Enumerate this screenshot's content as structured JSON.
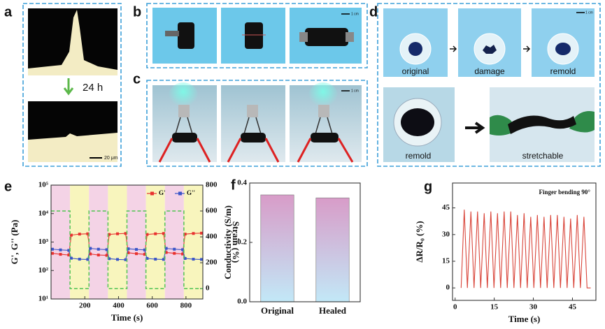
{
  "panel_labels": [
    "a",
    "b",
    "c",
    "d",
    "e",
    "f",
    "g"
  ],
  "photos": {
    "a_time": "24 h",
    "a_scale": "20 μm",
    "b_scale": "1 cm",
    "c_scale": "1 cm",
    "d_scale": "1 cm",
    "d_captions": [
      "original",
      "damage",
      "remold",
      "remold",
      "stretchable"
    ]
  },
  "chart_data": [
    {
      "type": "line",
      "xlabel": "Time (s)",
      "ylabel": "G', G'' (Pa)",
      "y2label": "Strain (%)",
      "log_y": true,
      "xlim": [
        0,
        900
      ],
      "xticks": [
        200,
        400,
        600,
        800
      ],
      "ylim": [
        10,
        100000
      ],
      "yticks": [
        {
          "value": 10,
          "label": "10¹"
        },
        {
          "value": 100,
          "label": "10²"
        },
        {
          "value": 1000,
          "label": "10³"
        },
        {
          "value": 10000,
          "label": "10⁴"
        },
        {
          "value": 100000,
          "label": "10⁵"
        }
      ],
      "y2lim": [
        -80,
        800
      ],
      "y2ticks": [
        0,
        200,
        400,
        600,
        800
      ],
      "legend": "upper right",
      "band_colors": [
        "#f4d3e6",
        "#f8f5bd"
      ],
      "series": [
        {
          "name": "G'",
          "color": "#e8312f",
          "x": [
            8,
            56,
            105,
            120,
            169,
            217,
            233,
            281,
            330,
            345,
            394,
            442,
            458,
            506,
            555,
            570,
            619,
            667,
            683,
            731,
            780,
            795,
            844,
            892
          ],
          "values": [
            400,
            370,
            350,
            1750,
            1900,
            1950,
            380,
            350,
            340,
            1850,
            1950,
            2000,
            420,
            390,
            370,
            1850,
            1950,
            2000,
            430,
            400,
            380,
            1900,
            2000,
            2050
          ]
        },
        {
          "name": "G''",
          "color": "#3a55c8",
          "x": [
            8,
            56,
            105,
            120,
            169,
            217,
            233,
            281,
            330,
            345,
            394,
            442,
            458,
            506,
            555,
            570,
            619,
            667,
            683,
            731,
            780,
            795,
            844,
            892
          ],
          "values": [
            560,
            530,
            510,
            270,
            250,
            245,
            600,
            560,
            540,
            260,
            245,
            240,
            580,
            550,
            530,
            265,
            250,
            245,
            600,
            560,
            540,
            265,
            250,
            245
          ]
        },
        {
          "axis": "y2",
          "color": "#5cc65c",
          "dash": true,
          "x": [
            0,
            112.5,
            112.5,
            225,
            225,
            337.5,
            337.5,
            450,
            450,
            562.5,
            562.5,
            675,
            675,
            787.5,
            787.5,
            900
          ],
          "values": [
            600,
            600,
            0,
            0,
            600,
            600,
            0,
            0,
            600,
            600,
            0,
            0,
            600,
            600,
            0,
            0
          ]
        }
      ]
    },
    {
      "type": "bar",
      "ylabel": "Conductivity (S/m)",
      "categories": [
        "Original",
        "Healed"
      ],
      "values": [
        0.36,
        0.35
      ],
      "ylim": [
        0,
        0.4
      ],
      "yticks": [
        {
          "value": 0,
          "label": "0.0"
        },
        0.2,
        0.4
      ],
      "gradient": [
        "#d89cc8",
        "#c2e8f7"
      ]
    },
    {
      "type": "line",
      "annotation": "Finger bending  90°",
      "xlabel": "Time (s)",
      "ylabel": "ΔR/R₀ (%)",
      "xlim": [
        -1,
        54
      ],
      "xticks": [
        0,
        15,
        30,
        45
      ],
      "ylim": [
        -7,
        59
      ],
      "yticks": [
        0,
        15,
        30,
        45
      ],
      "series": [
        {
          "color": "#d9453a",
          "x": [
            2.3,
            3.5,
            4.7,
            6.05,
            7.25,
            8.6,
            9.8,
            11.15,
            12.35,
            13.7,
            14.9,
            16.25,
            17.45,
            18.8,
            20.0,
            21.35,
            22.55,
            23.9,
            25.1,
            26.45,
            27.65,
            29.0,
            30.2,
            31.55,
            32.75,
            34.1,
            35.3,
            36.65,
            37.85,
            39.2,
            40.4,
            41.75,
            42.95,
            44.3,
            45.5,
            46.85,
            48.05,
            49.4,
            50.6,
            52
          ],
          "values": [
            0,
            44,
            0,
            43,
            0,
            43,
            0,
            42,
            0,
            43,
            0,
            42,
            0,
            43,
            0,
            43,
            0,
            41,
            0,
            42,
            0,
            40,
            0,
            41,
            0,
            40,
            0,
            41,
            0,
            41,
            0,
            40,
            0,
            39,
            0,
            41,
            0,
            40,
            0,
            0
          ]
        }
      ]
    }
  ]
}
